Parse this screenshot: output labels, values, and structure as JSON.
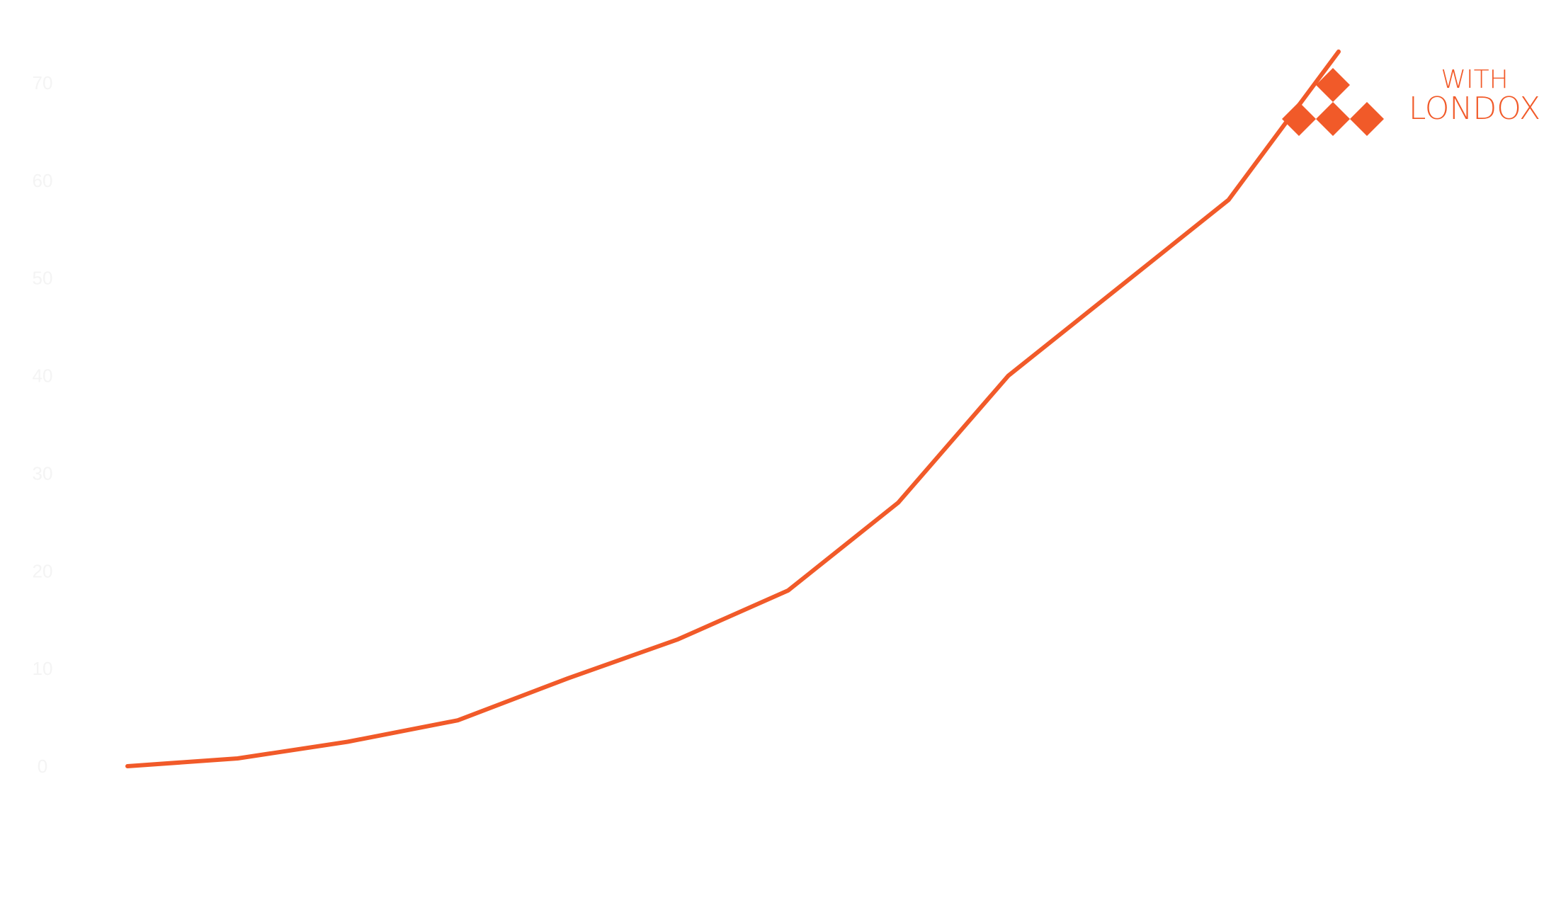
{
  "chart_data": {
    "type": "line",
    "title": "",
    "xlabel": "",
    "ylabel": "",
    "ylim": [
      0,
      70
    ],
    "yticks": [
      0,
      10,
      20,
      30,
      40,
      50,
      60,
      70
    ],
    "ytick_labels": [
      "0",
      "10",
      "20",
      "30",
      "40",
      "50",
      "60",
      "70"
    ],
    "grid": false,
    "legend_position": "top-right",
    "x": [
      0,
      1,
      2,
      3,
      4,
      5,
      6,
      7,
      8,
      9,
      10,
      11
    ],
    "series": [
      {
        "name": "LONDOX",
        "name_prefix": "WITH",
        "color": "#f15a29",
        "values": [
          0.0,
          0.8,
          2.5,
          4.7,
          9.0,
          13.0,
          18.0,
          27.0,
          40.0,
          49.0,
          58.0,
          73.2
        ]
      }
    ]
  },
  "legend": {
    "prefix": "WITH",
    "label": "LONDOX",
    "color": "#f15a29",
    "marker": "diamond-cluster-icon"
  },
  "colors": {
    "accent": "#f15a29",
    "tick_label": "#f4f4f4",
    "background": "#ffffff"
  }
}
